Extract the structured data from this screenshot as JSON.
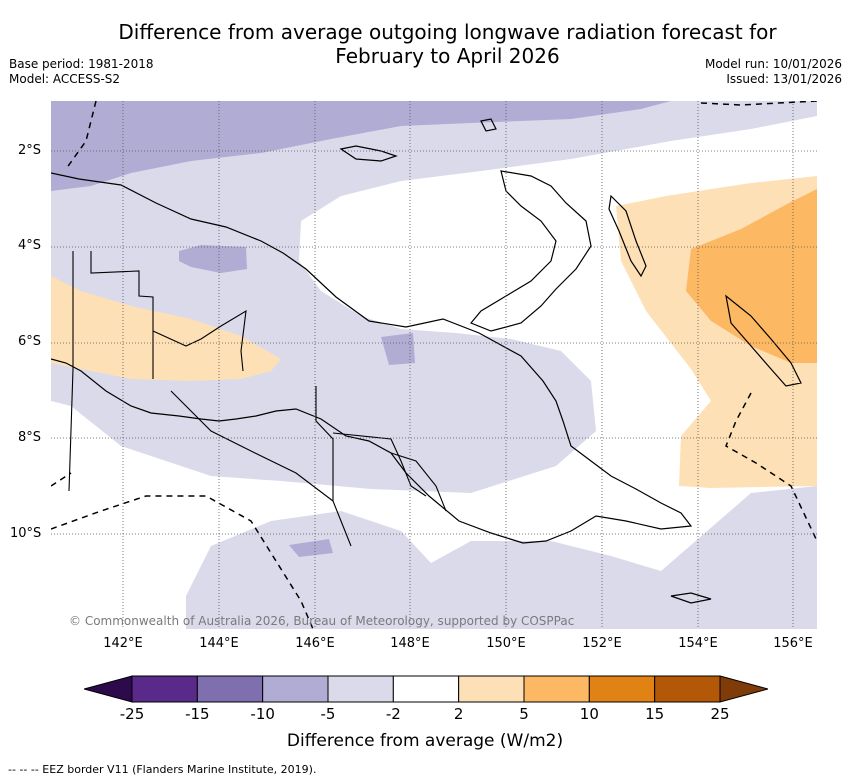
{
  "title_line1": "Difference from average outgoing longwave radiation forecast for",
  "title_line2": "February to April 2026",
  "base_period": "Base period: 1981-2018",
  "model": "Model: ACCESS-S2",
  "model_run": "Model run: 10/01/2026",
  "issued": "Issued: 13/01/2026",
  "lat_labels": [
    "2°S",
    "4°S",
    "6°S",
    "8°S",
    "10°S"
  ],
  "lon_labels": [
    "142°E",
    "144°E",
    "146°E",
    "148°E",
    "150°E",
    "152°E",
    "154°E",
    "156°E"
  ],
  "copyright": "© Commonwealth of Australia 2026, Bureau of Meteorology, supported by COSPPac",
  "colorbar": {
    "ticks": [
      "-25",
      "-15",
      "-10",
      "-5",
      "-2",
      "2",
      "5",
      "10",
      "15",
      "25"
    ],
    "colors": [
      "#2d0a4b",
      "#5a2a8a",
      "#7f6fae",
      "#b1acd4",
      "#dadaeb",
      "#ffffff",
      "#fee0b6",
      "#fdb863",
      "#e08214",
      "#b35806",
      "#7f3b08"
    ],
    "label": "Difference from average (W/m2)"
  },
  "footer": "--  --  -- EEZ border V11 (Flanders Marine Institute, 2019)."
}
